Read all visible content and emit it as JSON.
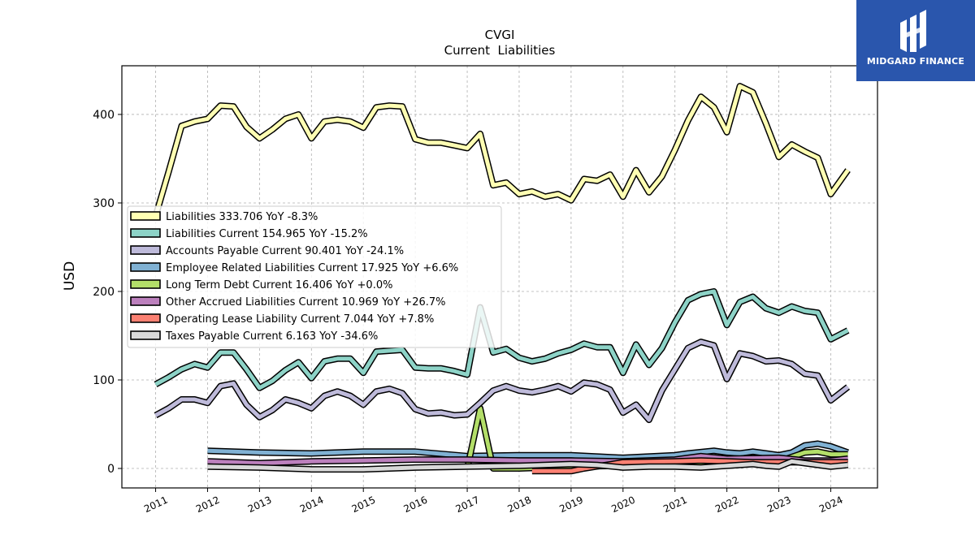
{
  "brand": {
    "name": "MIDGARD FINANCE",
    "bg_color": "#2a56ad",
    "icon": "midgard-logo-icon"
  },
  "chart_data": {
    "type": "line",
    "title": "CVGI",
    "subtitle": "Current  Liabilities",
    "xlabel": "",
    "ylabel": "USD",
    "xlim": [
      2010.35,
      2024.9
    ],
    "ylim": [
      -22,
      455
    ],
    "x_ticks": [
      2011,
      2012,
      2013,
      2014,
      2015,
      2016,
      2017,
      2018,
      2019,
      2020,
      2021,
      2022,
      2023,
      2024
    ],
    "x_tick_labels": [
      "2011",
      "2012",
      "2013",
      "2014",
      "2015",
      "2016",
      "2017",
      "2018",
      "2019",
      "2020",
      "2021",
      "2022",
      "2023",
      "2024"
    ],
    "y_ticks": [
      0,
      100,
      200,
      300,
      400
    ],
    "y_tick_labels": [
      "0",
      "100",
      "200",
      "300",
      "400"
    ],
    "grid": true,
    "legend_position": "center-left",
    "legend": [
      "Liabilities  333.706 YoY -8.3%",
      "Liabilities Current  154.965 YoY -15.2%",
      "Accounts Payable Current  90.401 YoY -24.1%",
      "Employee Related Liabilities Current  17.925 YoY +6.6%",
      "Long Term Debt Current  16.406 YoY +0.0%",
      "Other Accrued Liabilities Current  10.969 YoY +26.7%",
      "Operating Lease Liability Current  7.044 YoY +7.8%",
      "Taxes Payable Current  6.163 YoY -34.6%"
    ],
    "series": [
      {
        "color": "#ffffb3",
        "x": [
          2011.0,
          2011.25,
          2011.5,
          2011.75,
          2012.0,
          2012.25,
          2012.5,
          2012.75,
          2013.0,
          2013.25,
          2013.5,
          2013.75,
          2014.0,
          2014.25,
          2014.5,
          2014.75,
          2015.0,
          2015.25,
          2015.5,
          2015.75,
          2016.0,
          2016.25,
          2016.5,
          2016.75,
          2017.0,
          2017.25,
          2017.5,
          2017.75,
          2018.0,
          2018.25,
          2018.5,
          2018.75,
          2019.0,
          2019.25,
          2019.5,
          2019.75,
          2020.0,
          2020.25,
          2020.5,
          2020.75,
          2021.0,
          2021.25,
          2021.5,
          2021.75,
          2022.0,
          2022.25,
          2022.5,
          2022.75,
          2023.0,
          2023.25,
          2023.5,
          2023.75,
          2024.0,
          2024.33
        ],
        "values": [
          285,
          335,
          387,
          392,
          395,
          410,
          409,
          386,
          373,
          383,
          395,
          400,
          373,
          392,
          394,
          392,
          385,
          408,
          410,
          409,
          372,
          368,
          368,
          365,
          362,
          378,
          320,
          323,
          310,
          313,
          307,
          310,
          303,
          327,
          325,
          332,
          307,
          337,
          312,
          330,
          360,
          393,
          420,
          408,
          380,
          432,
          425,
          390,
          352,
          366,
          358,
          351,
          310,
          337
        ]
      },
      {
        "color": "#8dd3c7",
        "x": [
          2011.0,
          2011.25,
          2011.5,
          2011.75,
          2012.0,
          2012.25,
          2012.5,
          2012.75,
          2013.0,
          2013.25,
          2013.5,
          2013.75,
          2014.0,
          2014.25,
          2014.5,
          2014.75,
          2015.0,
          2015.25,
          2015.5,
          2015.75,
          2016.0,
          2016.25,
          2016.5,
          2016.75,
          2017.0,
          2017.25,
          2017.5,
          2017.75,
          2018.0,
          2018.25,
          2018.5,
          2018.75,
          2019.0,
          2019.25,
          2019.5,
          2019.75,
          2020.0,
          2020.25,
          2020.5,
          2020.75,
          2021.0,
          2021.25,
          2021.5,
          2021.75,
          2022.0,
          2022.25,
          2022.5,
          2022.75,
          2023.0,
          2023.25,
          2023.5,
          2023.75,
          2024.0,
          2024.33
        ],
        "values": [
          95,
          103,
          112,
          118,
          114,
          131,
          131,
          112,
          91,
          99,
          111,
          120,
          102,
          121,
          124,
          124,
          108,
          132,
          133,
          134,
          114,
          113,
          113,
          110,
          106,
          182,
          131,
          135,
          125,
          121,
          124,
          130,
          134,
          141,
          137,
          137,
          108,
          140,
          117,
          136,
          165,
          190,
          197,
          200,
          162,
          188,
          194,
          181,
          176,
          183,
          178,
          176,
          146,
          156
        ]
      },
      {
        "color": "#bebada",
        "x": [
          2011.0,
          2011.25,
          2011.5,
          2011.75,
          2012.0,
          2012.25,
          2012.5,
          2012.75,
          2013.0,
          2013.25,
          2013.5,
          2013.75,
          2014.0,
          2014.25,
          2014.5,
          2014.75,
          2015.0,
          2015.25,
          2015.5,
          2015.75,
          2016.0,
          2016.25,
          2016.5,
          2016.75,
          2017.0,
          2017.25,
          2017.5,
          2017.75,
          2018.0,
          2018.25,
          2018.5,
          2018.75,
          2019.0,
          2019.25,
          2019.5,
          2019.75,
          2020.0,
          2020.25,
          2020.5,
          2020.75,
          2021.0,
          2021.25,
          2021.5,
          2021.75,
          2022.0,
          2022.25,
          2022.5,
          2022.75,
          2023.0,
          2023.25,
          2023.5,
          2023.75,
          2024.0,
          2024.33
        ],
        "values": [
          60,
          68,
          78,
          78,
          74,
          93,
          96,
          72,
          58,
          66,
          78,
          74,
          68,
          82,
          87,
          82,
          72,
          87,
          90,
          85,
          67,
          62,
          63,
          60,
          61,
          74,
          88,
          93,
          88,
          86,
          89,
          93,
          87,
          97,
          95,
          89,
          63,
          72,
          55,
          88,
          112,
          136,
          143,
          139,
          101,
          130,
          127,
          121,
          122,
          118,
          107,
          105,
          77,
          92
        ]
      },
      {
        "color": "#80b1d3",
        "x": [
          2012.0,
          2013.0,
          2014.0,
          2015.0,
          2016.0,
          2017.0,
          2018.0,
          2019.0,
          2020.0,
          2021.0,
          2021.25,
          2021.75,
          2022.0,
          2022.25,
          2022.5,
          2022.75,
          2023.0,
          2023.25,
          2023.5,
          2023.75,
          2024.0,
          2024.33
        ],
        "values": [
          20,
          18,
          17,
          19,
          19,
          14,
          15,
          15,
          12,
          15,
          17,
          20,
          18,
          17,
          19,
          17,
          15,
          18,
          26,
          28,
          25,
          18
        ]
      },
      {
        "color": "#b3de69",
        "x": [
          2017.0,
          2017.25,
          2017.5,
          2017.75,
          2018.0,
          2019.0,
          2020.0,
          2021.0,
          2022.0,
          2023.0,
          2023.5,
          2023.75,
          2024.0,
          2024.33
        ],
        "values": [
          0,
          68,
          0,
          0,
          0,
          2,
          3,
          4,
          6,
          8,
          18,
          19,
          16,
          16
        ]
      },
      {
        "color": "#bc80bd",
        "x": [
          2012.0,
          2013.0,
          2014.0,
          2015.0,
          2016.0,
          2017.0,
          2018.0,
          2019.0,
          2020.0,
          2021.0,
          2021.5,
          2022.0,
          2023.0,
          2023.5,
          2024.0,
          2024.33
        ],
        "values": [
          8,
          6,
          8,
          9,
          10,
          10,
          9,
          9,
          8,
          10,
          14,
          11,
          12,
          9,
          9,
          11
        ]
      },
      {
        "color": "#fb8072",
        "x": [
          2018.25,
          2019.0,
          2019.25,
          2020.0,
          2021.0,
          2021.5,
          2022.0,
          2022.5,
          2023.0,
          2023.5,
          2024.0,
          2024.33
        ],
        "values": [
          -3,
          -3,
          0,
          7,
          8,
          9,
          8,
          7,
          7,
          7,
          7,
          7
        ]
      },
      {
        "color": "#d9d9d9",
        "x": [
          2012.0,
          2013.0,
          2014.0,
          2015.0,
          2016.0,
          2017.0,
          2018.0,
          2019.0,
          2019.5,
          2020.0,
          2020.5,
          2021.0,
          2021.5,
          2022.0,
          2022.5,
          2022.75,
          2023.0,
          2023.25,
          2023.5,
          2023.75,
          2024.0,
          2024.33
        ],
        "values": [
          2,
          1,
          -1,
          -1,
          1,
          2,
          3,
          5,
          4,
          1,
          2,
          2,
          1,
          3,
          5,
          3,
          2,
          8,
          6,
          4,
          2,
          4
        ]
      }
    ]
  }
}
